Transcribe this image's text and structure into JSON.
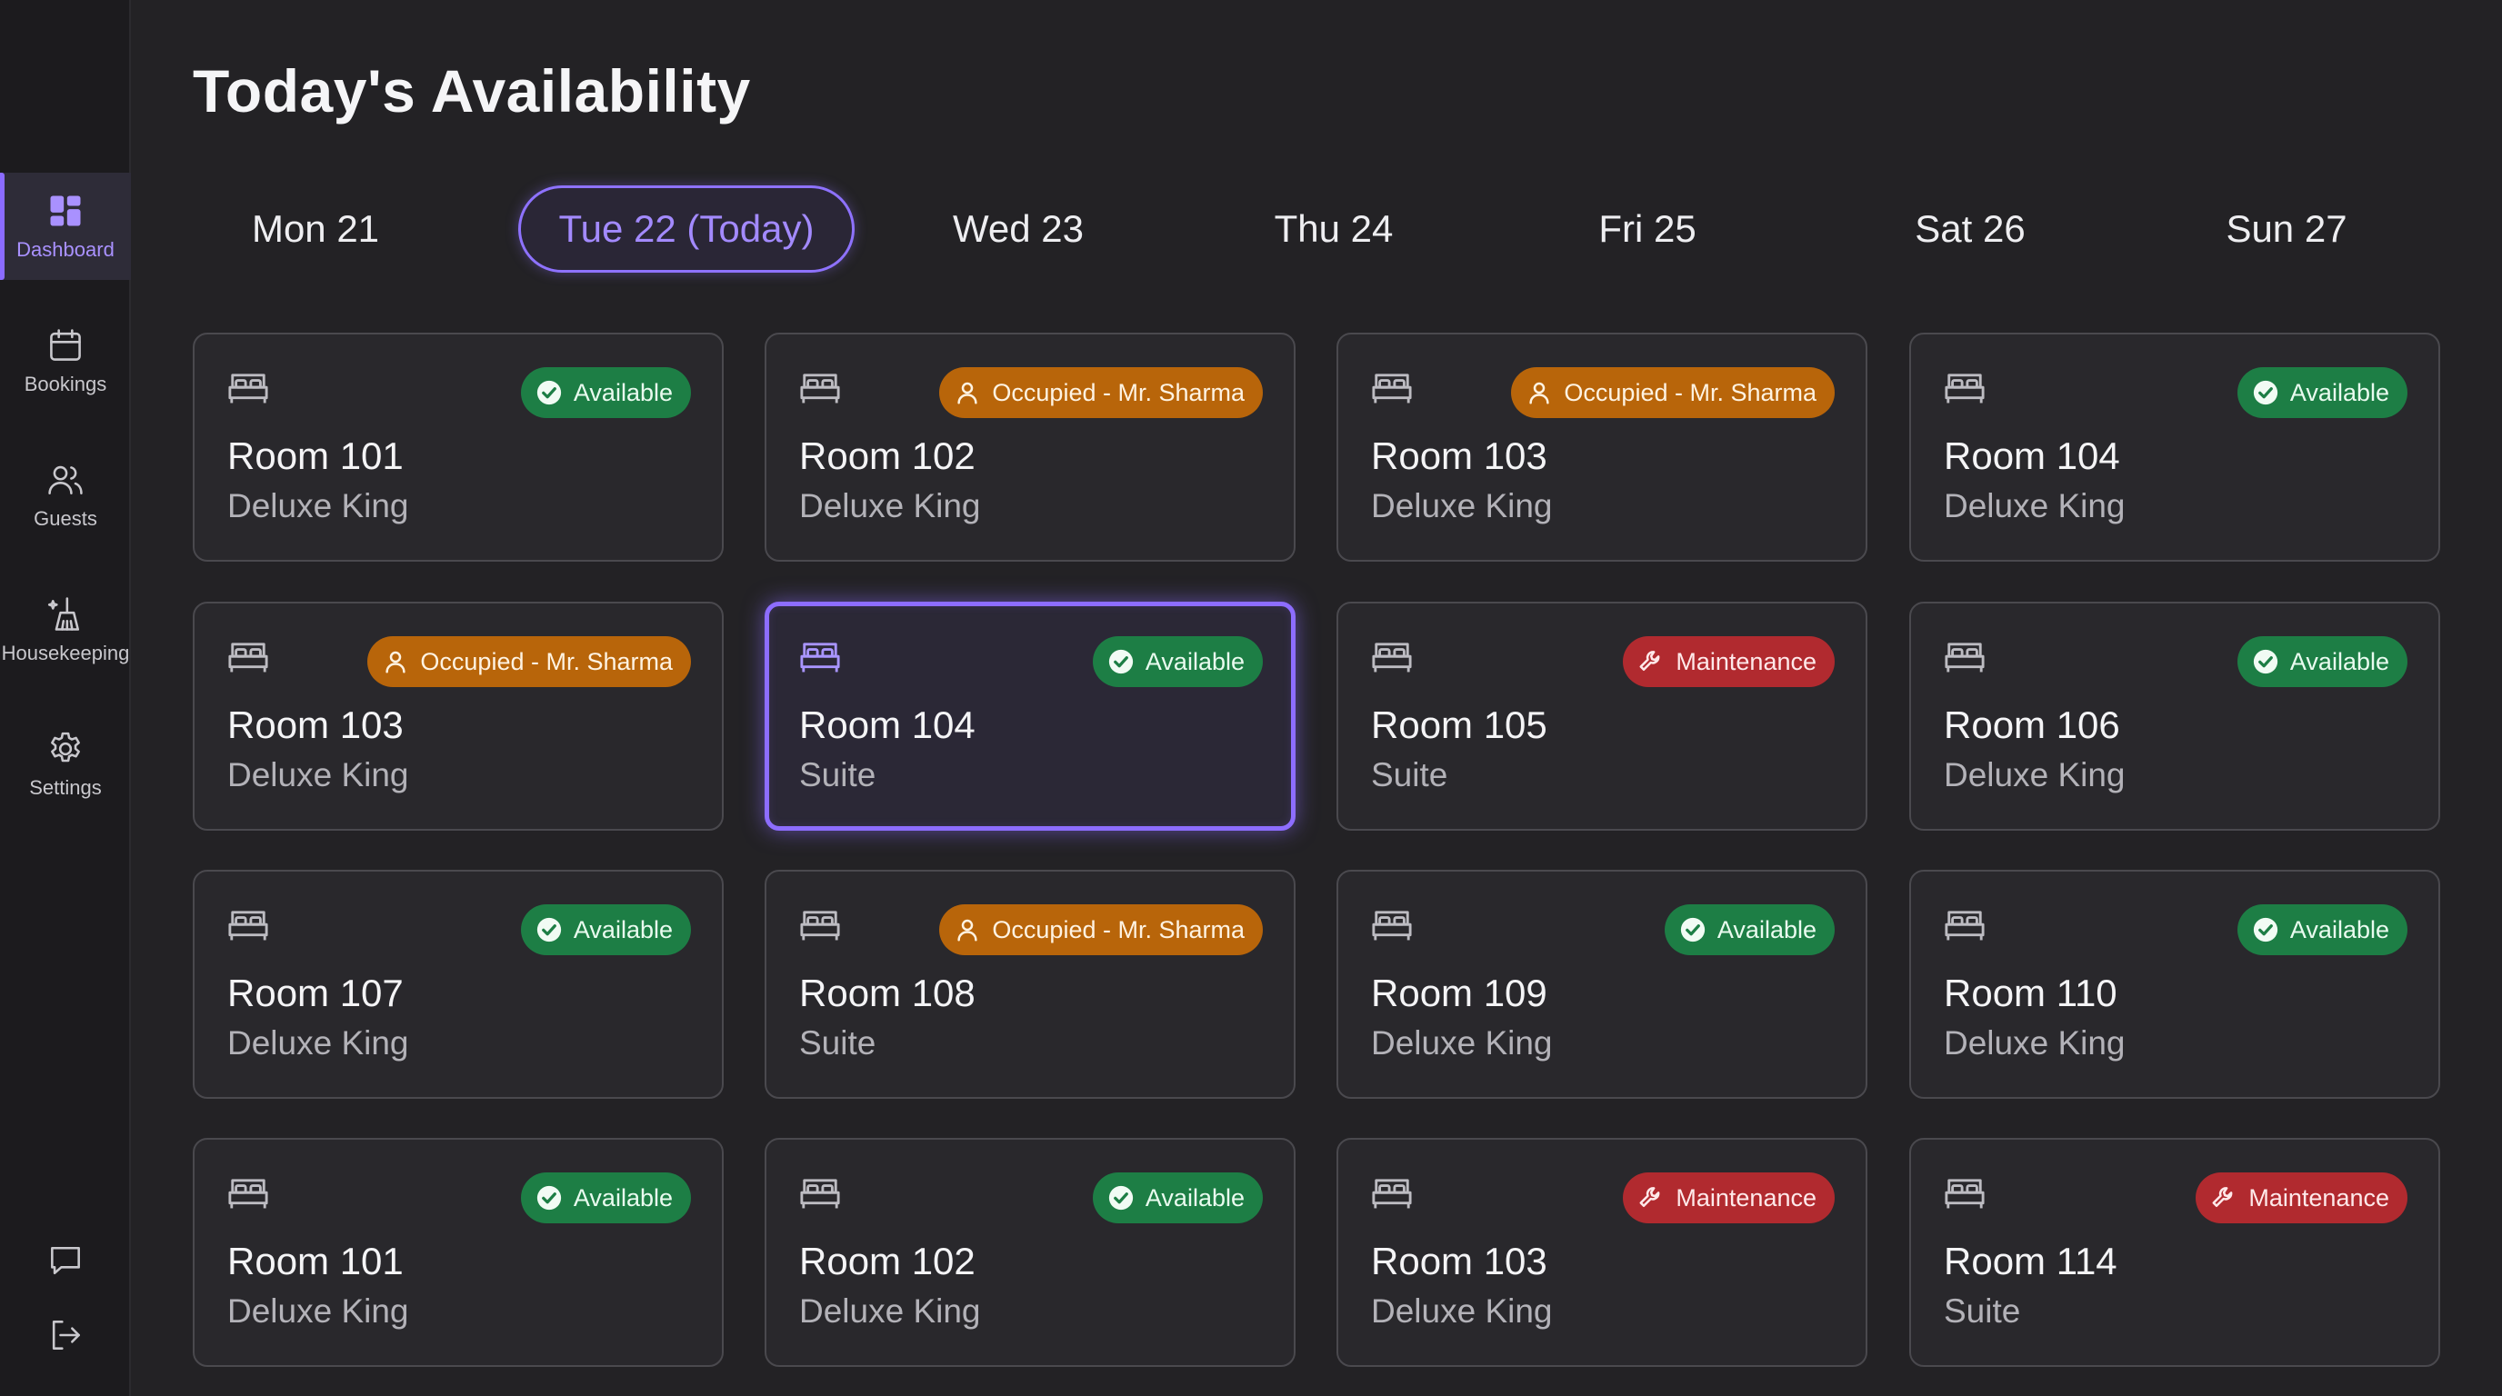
{
  "page": {
    "title": "Today's Availability"
  },
  "sidebar": {
    "items": [
      {
        "label": "Dashboard",
        "icon": "dashboard-icon",
        "active": true
      },
      {
        "label": "Bookings",
        "icon": "calendar-icon",
        "active": false
      },
      {
        "label": "Guests",
        "icon": "guests-icon",
        "active": false
      },
      {
        "label": "Housekeeping",
        "icon": "housekeeping-icon",
        "active": false
      },
      {
        "label": "Settings",
        "icon": "gear-icon",
        "active": false
      }
    ],
    "bottom_icons": [
      "chat-icon",
      "logout-icon"
    ]
  },
  "days": [
    {
      "label": "Mon 21",
      "today": false
    },
    {
      "label": "Tue 22 (Today)",
      "today": true
    },
    {
      "label": "Wed 23",
      "today": false
    },
    {
      "label": "Thu 24",
      "today": false
    },
    {
      "label": "Fri 25",
      "today": false
    },
    {
      "label": "Sat 26",
      "today": false
    },
    {
      "label": "Sun 27",
      "today": false
    }
  ],
  "rooms": [
    {
      "name": "Room 101",
      "type": "Deluxe King",
      "status": "Available",
      "status_kind": "available"
    },
    {
      "name": "Room 102",
      "type": "Deluxe King",
      "status": "Occupied - Mr. Sharma",
      "status_kind": "occupied"
    },
    {
      "name": "Room 103",
      "type": "Deluxe King",
      "status": "Occupied - Mr. Sharma",
      "status_kind": "occupied"
    },
    {
      "name": "Room 104",
      "type": "Deluxe King",
      "status": "Available",
      "status_kind": "available"
    },
    {
      "name": "Room 103",
      "type": "Deluxe King",
      "status": "Occupied - Mr. Sharma",
      "status_kind": "occupied"
    },
    {
      "name": "Room 104",
      "type": "Suite",
      "status": "Available",
      "status_kind": "available",
      "selected": true
    },
    {
      "name": "Room 105",
      "type": "Suite",
      "status": "Maintenance",
      "status_kind": "maintenance"
    },
    {
      "name": "Room 106",
      "type": "Deluxe King",
      "status": "Available",
      "status_kind": "available"
    },
    {
      "name": "Room 107",
      "type": "Deluxe King",
      "status": "Available",
      "status_kind": "available"
    },
    {
      "name": "Room 108",
      "type": "Suite",
      "status": "Occupied - Mr. Sharma",
      "status_kind": "occupied"
    },
    {
      "name": "Room 109",
      "type": "Deluxe King",
      "status": "Available",
      "status_kind": "available"
    },
    {
      "name": "Room 110",
      "type": "Deluxe King",
      "status": "Available",
      "status_kind": "available"
    },
    {
      "name": "Room 101",
      "type": "Deluxe King",
      "status": "Available",
      "status_kind": "available"
    },
    {
      "name": "Room 102",
      "type": "Deluxe King",
      "status": "Available",
      "status_kind": "available"
    },
    {
      "name": "Room 103",
      "type": "Deluxe King",
      "status": "Maintenance",
      "status_kind": "maintenance"
    },
    {
      "name": "Room 114",
      "type": "Suite",
      "status": "Maintenance",
      "status_kind": "maintenance"
    }
  ],
  "colors": {
    "accent": "#8b6bff",
    "available": "#1d7e45",
    "occupied": "#b8650a",
    "maintenance": "#b12a2f",
    "background": "#232225",
    "card": "#29282c"
  }
}
